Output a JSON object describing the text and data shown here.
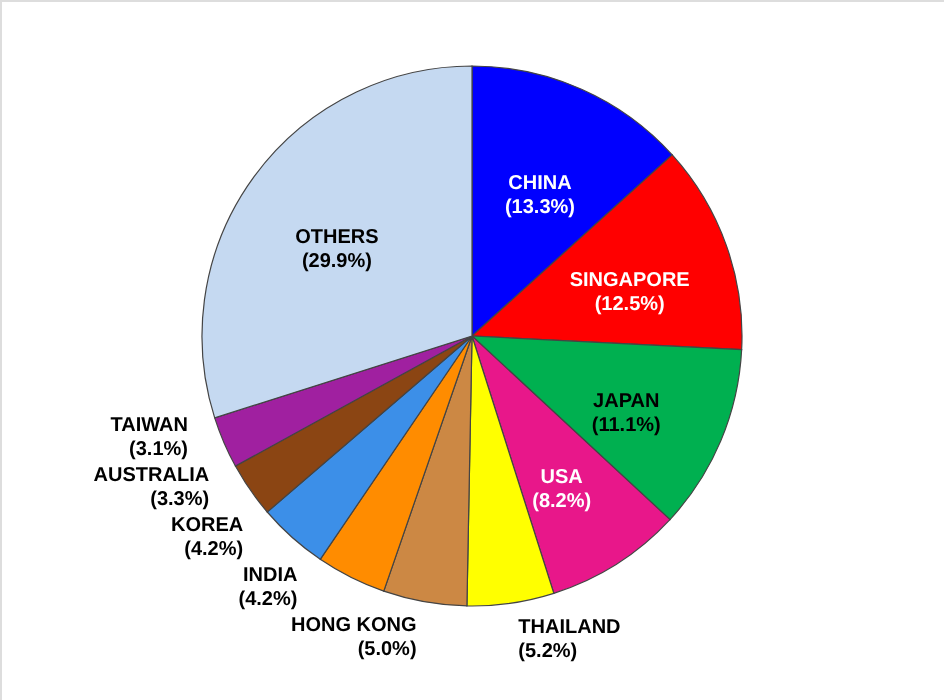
{
  "chart_data": {
    "type": "pie",
    "categories": [
      "CHINA",
      "SINGAPORE",
      "JAPAN",
      "USA",
      "THAILAND",
      "HONG KONG",
      "INDIA",
      "KOREA",
      "AUSTRALIA",
      "TAIWAN",
      "OTHERS"
    ],
    "values": [
      13.3,
      12.5,
      11.1,
      8.2,
      5.2,
      5.0,
      4.2,
      4.2,
      3.3,
      3.1,
      29.9
    ],
    "value_labels": [
      "(13.3%)",
      "(12.5%)",
      "(11.1%)",
      "(8.2%)",
      "(5.2%)",
      "(5.0%)",
      "(4.2%)",
      "(4.2%)",
      "(3.3%)",
      "(3.1%)",
      "(29.9%)"
    ],
    "colors": [
      "#0000ff",
      "#ff0000",
      "#00b050",
      "#e8178a",
      "#ffff00",
      "#cc8844",
      "#ff8c00",
      "#3c8fe8",
      "#8b4513",
      "#a020a0",
      "#c5d9f1"
    ],
    "legend": false
  }
}
